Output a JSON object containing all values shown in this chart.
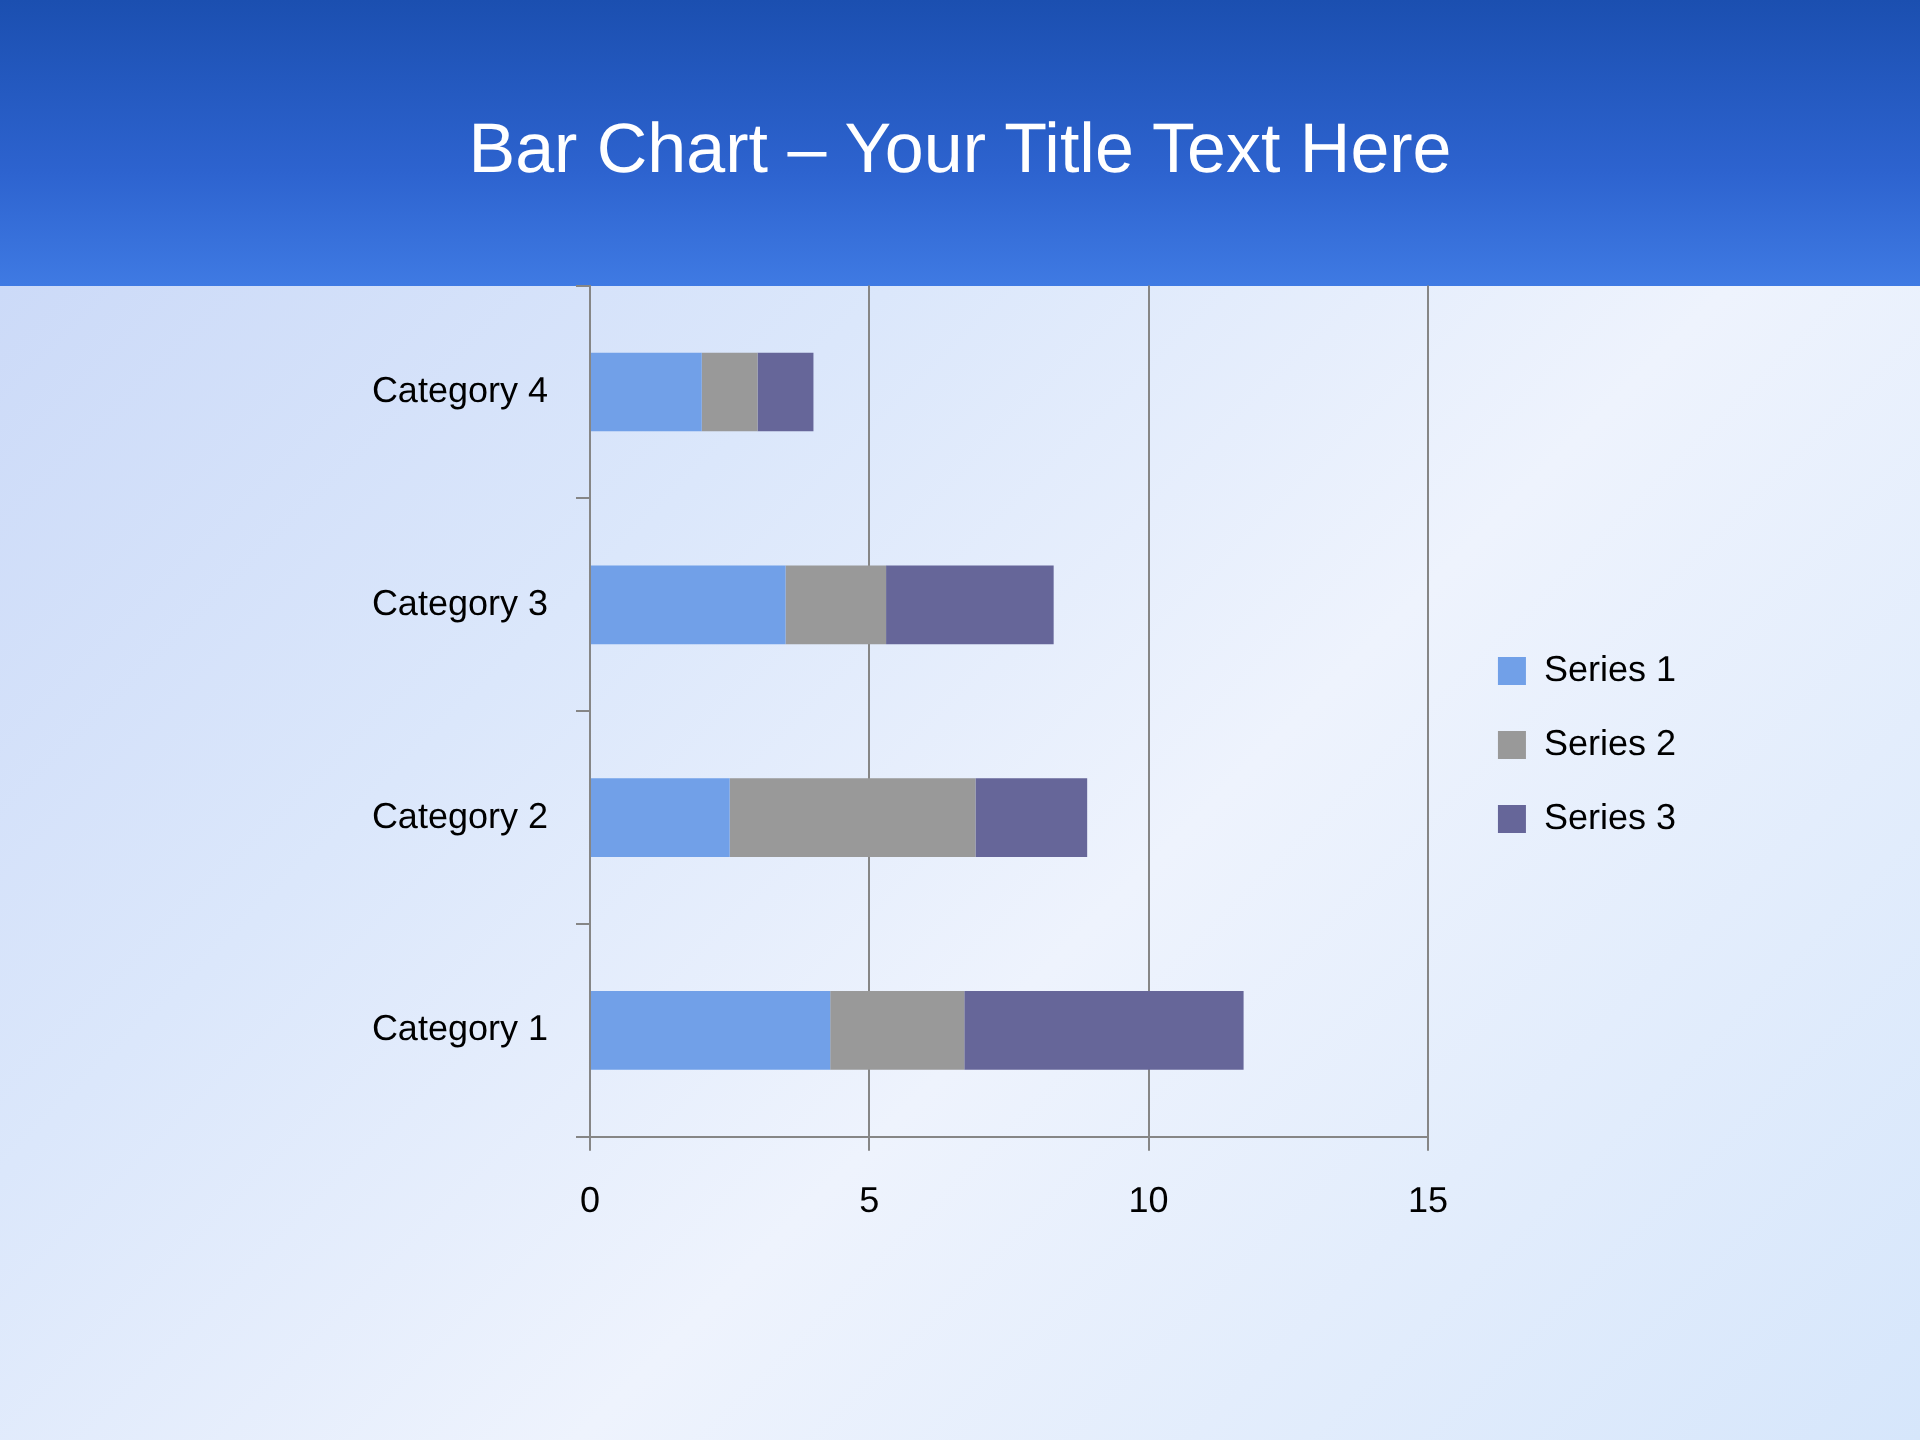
{
  "chart_data": {
    "type": "bar",
    "orientation": "horizontal",
    "stacked": true,
    "title": "Bar Chart – Your Title Text Here",
    "categories": [
      "Category 4",
      "Category 3",
      "Category 2",
      "Category 1"
    ],
    "series": [
      {
        "name": "Series 1",
        "color": "#71a0e8",
        "values": [
          2,
          3.5,
          2.5,
          4.3
        ]
      },
      {
        "name": "Series 2",
        "color": "#999999",
        "values": [
          1,
          1.8,
          4.4,
          2.4
        ]
      },
      {
        "name": "Series 3",
        "color": "#666699",
        "values": [
          1,
          3,
          2,
          5
        ]
      }
    ],
    "xlim": [
      0,
      15
    ],
    "xticks": [
      0,
      5,
      10,
      15
    ],
    "grid": "x",
    "legend": "right"
  }
}
